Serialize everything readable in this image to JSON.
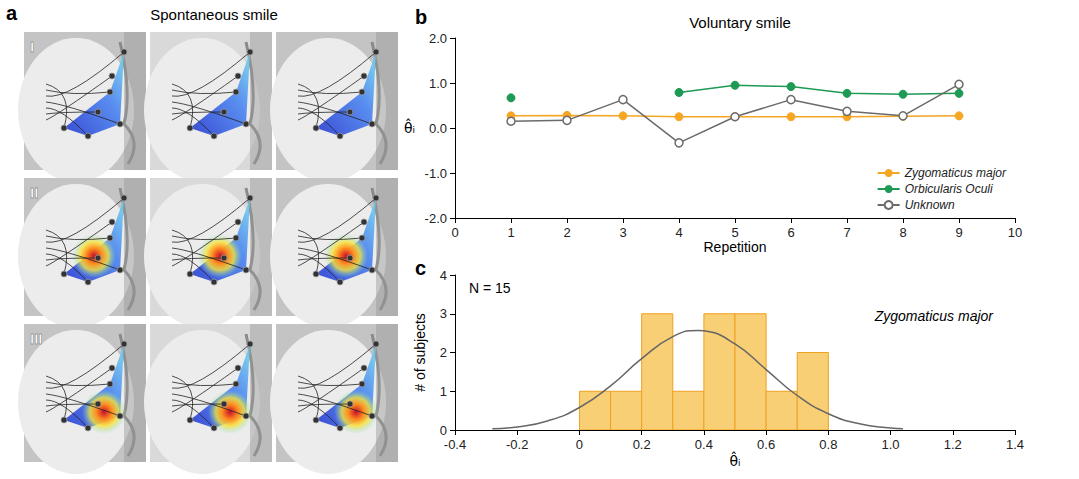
{
  "panel_a": {
    "letter": "a",
    "title": "Spontaneous smile",
    "rows": [
      "I",
      "II",
      "III"
    ]
  },
  "chart_data": [
    {
      "type": "line",
      "letter": "b",
      "title": "Voluntary smile",
      "x_label": "Repetition",
      "y_label": "θ̂ᵢ",
      "x": [
        1,
        2,
        3,
        4,
        5,
        6,
        7,
        8,
        9
      ],
      "series": [
        {
          "name": "Zygomaticus major",
          "color": "#f5a623",
          "marker": "circle",
          "line_style": "solid",
          "values": [
            0.27,
            0.28,
            0.27,
            0.25,
            0.25,
            0.25,
            0.25,
            0.26,
            0.27
          ]
        },
        {
          "name": "Orbicularis Oculi",
          "color": "#1e9a55",
          "marker": "circle",
          "line_style": "solid",
          "values": [
            0.67,
            null,
            null,
            0.79,
            0.95,
            0.92,
            0.77,
            0.75,
            0.77
          ]
        },
        {
          "name": "Unknown",
          "color": "#6b6b6b",
          "marker": "open circle",
          "line_style": "solid",
          "values": [
            0.15,
            0.17,
            0.63,
            -0.33,
            0.25,
            0.63,
            0.37,
            0.27,
            0.97
          ]
        }
      ],
      "xlim": [
        0,
        10
      ],
      "xticks": [
        0,
        1,
        2,
        3,
        4,
        5,
        6,
        7,
        8,
        9,
        10
      ],
      "ylim": [
        -2,
        2
      ],
      "yticks": [
        {
          "value": -2,
          "label": "-2.0"
        },
        {
          "value": -1,
          "label": "-1.0"
        },
        {
          "value": 0,
          "label": "0.0"
        },
        {
          "value": 1,
          "label": "1.0"
        },
        {
          "value": 2,
          "label": "2.0"
        }
      ],
      "grid": false,
      "legend": "lower right"
    },
    {
      "type": "histogram",
      "letter": "c",
      "x_label": "θ̂ᵢ",
      "y_label": "# of subjects",
      "annotations": [
        "N = 15",
        "Zygomaticus major"
      ],
      "bins": [
        0,
        0.1,
        0.2,
        0.3,
        0.4,
        0.5,
        0.6,
        0.7,
        0.8
      ],
      "counts": [
        1,
        1,
        3,
        1,
        3,
        3,
        1,
        2
      ],
      "color": "#f8cf74",
      "curve": {
        "color": "#666666",
        "x": [
          -0.28,
          -0.2,
          -0.1,
          0,
          0.1,
          0.2,
          0.3,
          0.38,
          0.4,
          0.5,
          0.6,
          0.7,
          0.8,
          0.9,
          1.0,
          1.04
        ],
        "y": [
          0.03,
          0.08,
          0.24,
          0.58,
          1.14,
          1.84,
          2.41,
          2.57,
          2.56,
          2.22,
          1.56,
          0.89,
          0.42,
          0.16,
          0.05,
          0.03
        ]
      },
      "xlim": [
        -0.4,
        1.4
      ],
      "xticks": [
        -0.4,
        -0.2,
        0,
        0.2,
        0.4,
        0.6,
        0.8,
        {
          "value": 1,
          "label": "1.0"
        },
        1.2,
        1.4
      ],
      "ylim": [
        0,
        4
      ],
      "yticks": [
        0,
        1,
        2,
        3,
        4
      ],
      "grid": false
    }
  ]
}
